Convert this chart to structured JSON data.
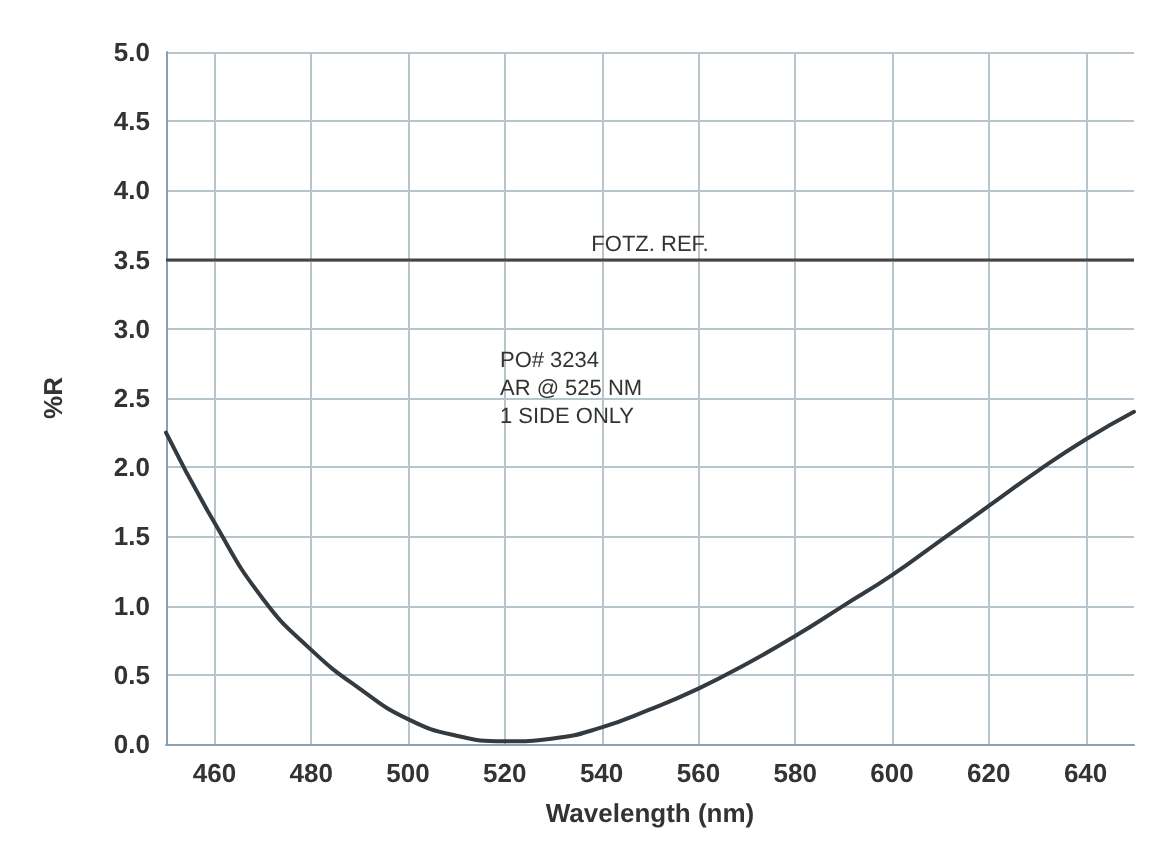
{
  "chart_data": {
    "type": "line",
    "xlabel": "Wavelength (nm)",
    "ylabel": "%R",
    "x": [
      450,
      460,
      470,
      480,
      490,
      500,
      510,
      520,
      530,
      540,
      550,
      560,
      570,
      580,
      590,
      600,
      610,
      620,
      630,
      640,
      650
    ],
    "series": [
      {
        "color": "#333a40",
        "values": [
          2.25,
          1.6,
          1.05,
          0.68,
          0.4,
          0.18,
          0.06,
          0.02,
          0.04,
          0.12,
          0.25,
          0.4,
          0.58,
          0.78,
          1.0,
          1.22,
          1.47,
          1.72,
          1.97,
          2.2,
          2.4
        ]
      }
    ],
    "xlim": [
      450,
      650
    ],
    "xticks": [
      460,
      480,
      500,
      520,
      540,
      560,
      580,
      600,
      620,
      640
    ],
    "ylim": [
      0,
      5
    ],
    "yticks": [
      {
        "value": 0,
        "label": "0.0"
      },
      {
        "value": 0.5,
        "label": "0.5"
      },
      {
        "value": 1,
        "label": "1.0"
      },
      {
        "value": 1.5,
        "label": "1.5"
      },
      {
        "value": 2,
        "label": "2.0"
      },
      {
        "value": 2.5,
        "label": "2.5"
      },
      {
        "value": 3,
        "label": "3.0"
      },
      {
        "value": 3.5,
        "label": "3.5"
      },
      {
        "value": 4,
        "label": "4.0"
      },
      {
        "value": 4.5,
        "label": "4.5"
      },
      {
        "value": 5,
        "label": "5.0"
      }
    ],
    "ref_lines": [
      {
        "axis": "y",
        "value": 3.5,
        "label": "FOTZ. REF.",
        "color": "#444444"
      }
    ],
    "annotations": [
      "PO# 3234",
      "AR @ 525 NM",
      "1 SIDE ONLY"
    ],
    "grid": true,
    "marker": "none",
    "line_style": "solid"
  }
}
